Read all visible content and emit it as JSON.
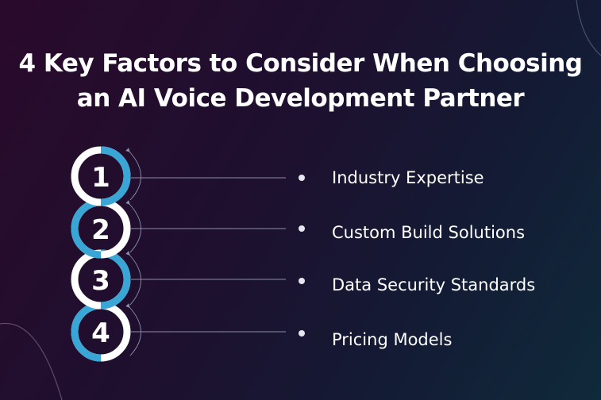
{
  "title": {
    "line1": "4 Key Factors to Consider When Choosing",
    "line2": "an AI Voice Development Partner"
  },
  "factors": [
    {
      "number": "1",
      "label": "Industry Expertise"
    },
    {
      "number": "2",
      "label": "Custom Build Solutions"
    },
    {
      "number": "3",
      "label": "Data Security Standards"
    },
    {
      "number": "4",
      "label": "Pricing Models"
    }
  ],
  "colors": {
    "ring_white": "#ffffff",
    "ring_blue": "#3aa6d6",
    "connector": "#8a8fa8",
    "bullet": "#e6e6ee"
  }
}
